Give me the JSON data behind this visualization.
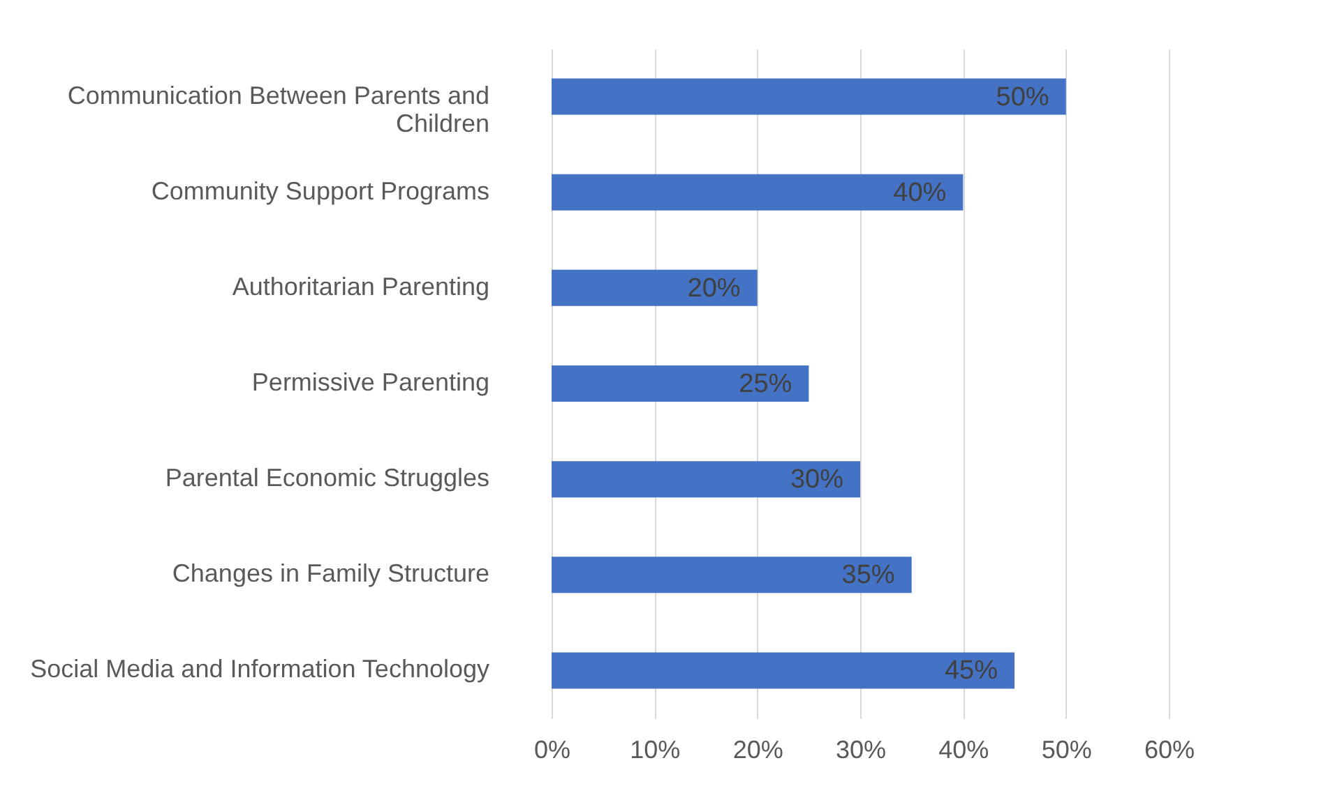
{
  "chart_data": {
    "type": "bar",
    "orientation": "horizontal",
    "categories": [
      "Communication Between Parents and Children",
      "Community Support Programs",
      "Authoritarian Parenting",
      "Permissive Parenting",
      "Parental Economic Struggles",
      "Changes in Family Structure",
      "Social Media and Information Technology"
    ],
    "values": [
      50,
      40,
      20,
      25,
      30,
      35,
      45
    ],
    "value_labels": [
      "50%",
      "40%",
      "20%",
      "25%",
      "30%",
      "35%",
      "45%"
    ],
    "color": "#4472c4",
    "xlim": [
      0,
      60
    ],
    "xticks": [
      {
        "value": 0,
        "label": "0%"
      },
      {
        "value": 10,
        "label": "10%"
      },
      {
        "value": 20,
        "label": "20%"
      },
      {
        "value": 30,
        "label": "30%"
      },
      {
        "value": 40,
        "label": "40%"
      },
      {
        "value": 50,
        "label": "50%"
      },
      {
        "value": 60,
        "label": "60%"
      }
    ],
    "grid": "x"
  }
}
